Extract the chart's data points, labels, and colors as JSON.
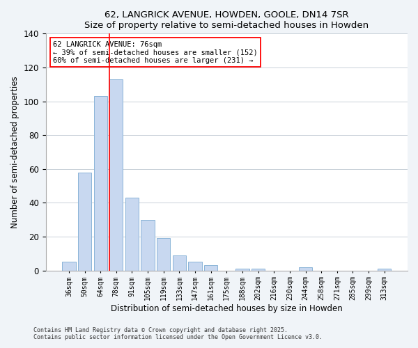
{
  "title1": "62, LANGRICK AVENUE, HOWDEN, GOOLE, DN14 7SR",
  "title2": "Size of property relative to semi-detached houses in Howden",
  "xlabel": "Distribution of semi-detached houses by size in Howden",
  "ylabel": "Number of semi-detached properties",
  "bar_labels": [
    "36sqm",
    "50sqm",
    "64sqm",
    "78sqm",
    "91sqm",
    "105sqm",
    "119sqm",
    "133sqm",
    "147sqm",
    "161sqm",
    "175sqm",
    "188sqm",
    "202sqm",
    "216sqm",
    "230sqm",
    "244sqm",
    "258sqm",
    "271sqm",
    "285sqm",
    "299sqm",
    "313sqm"
  ],
  "bar_values": [
    5,
    58,
    103,
    113,
    43,
    30,
    19,
    9,
    5,
    3,
    0,
    1,
    1,
    0,
    0,
    2,
    0,
    0,
    0,
    0,
    1
  ],
  "bar_color": "#c8d8f0",
  "bar_edge_color": "#8ab4d8",
  "ylim": [
    0,
    140
  ],
  "yticks": [
    0,
    20,
    40,
    60,
    80,
    100,
    120,
    140
  ],
  "property_label": "62 LANGRICK AVENUE: 76sqm",
  "pct_smaller": 39,
  "count_smaller": 152,
  "pct_larger": 60,
  "count_larger": 231,
  "vline_bar_index": 3,
  "footer1": "Contains HM Land Registry data © Crown copyright and database right 2025.",
  "footer2": "Contains public sector information licensed under the Open Government Licence v3.0.",
  "background_color": "#f0f4f8",
  "plot_bg_color": "#ffffff",
  "grid_color": "#c8d0d8"
}
